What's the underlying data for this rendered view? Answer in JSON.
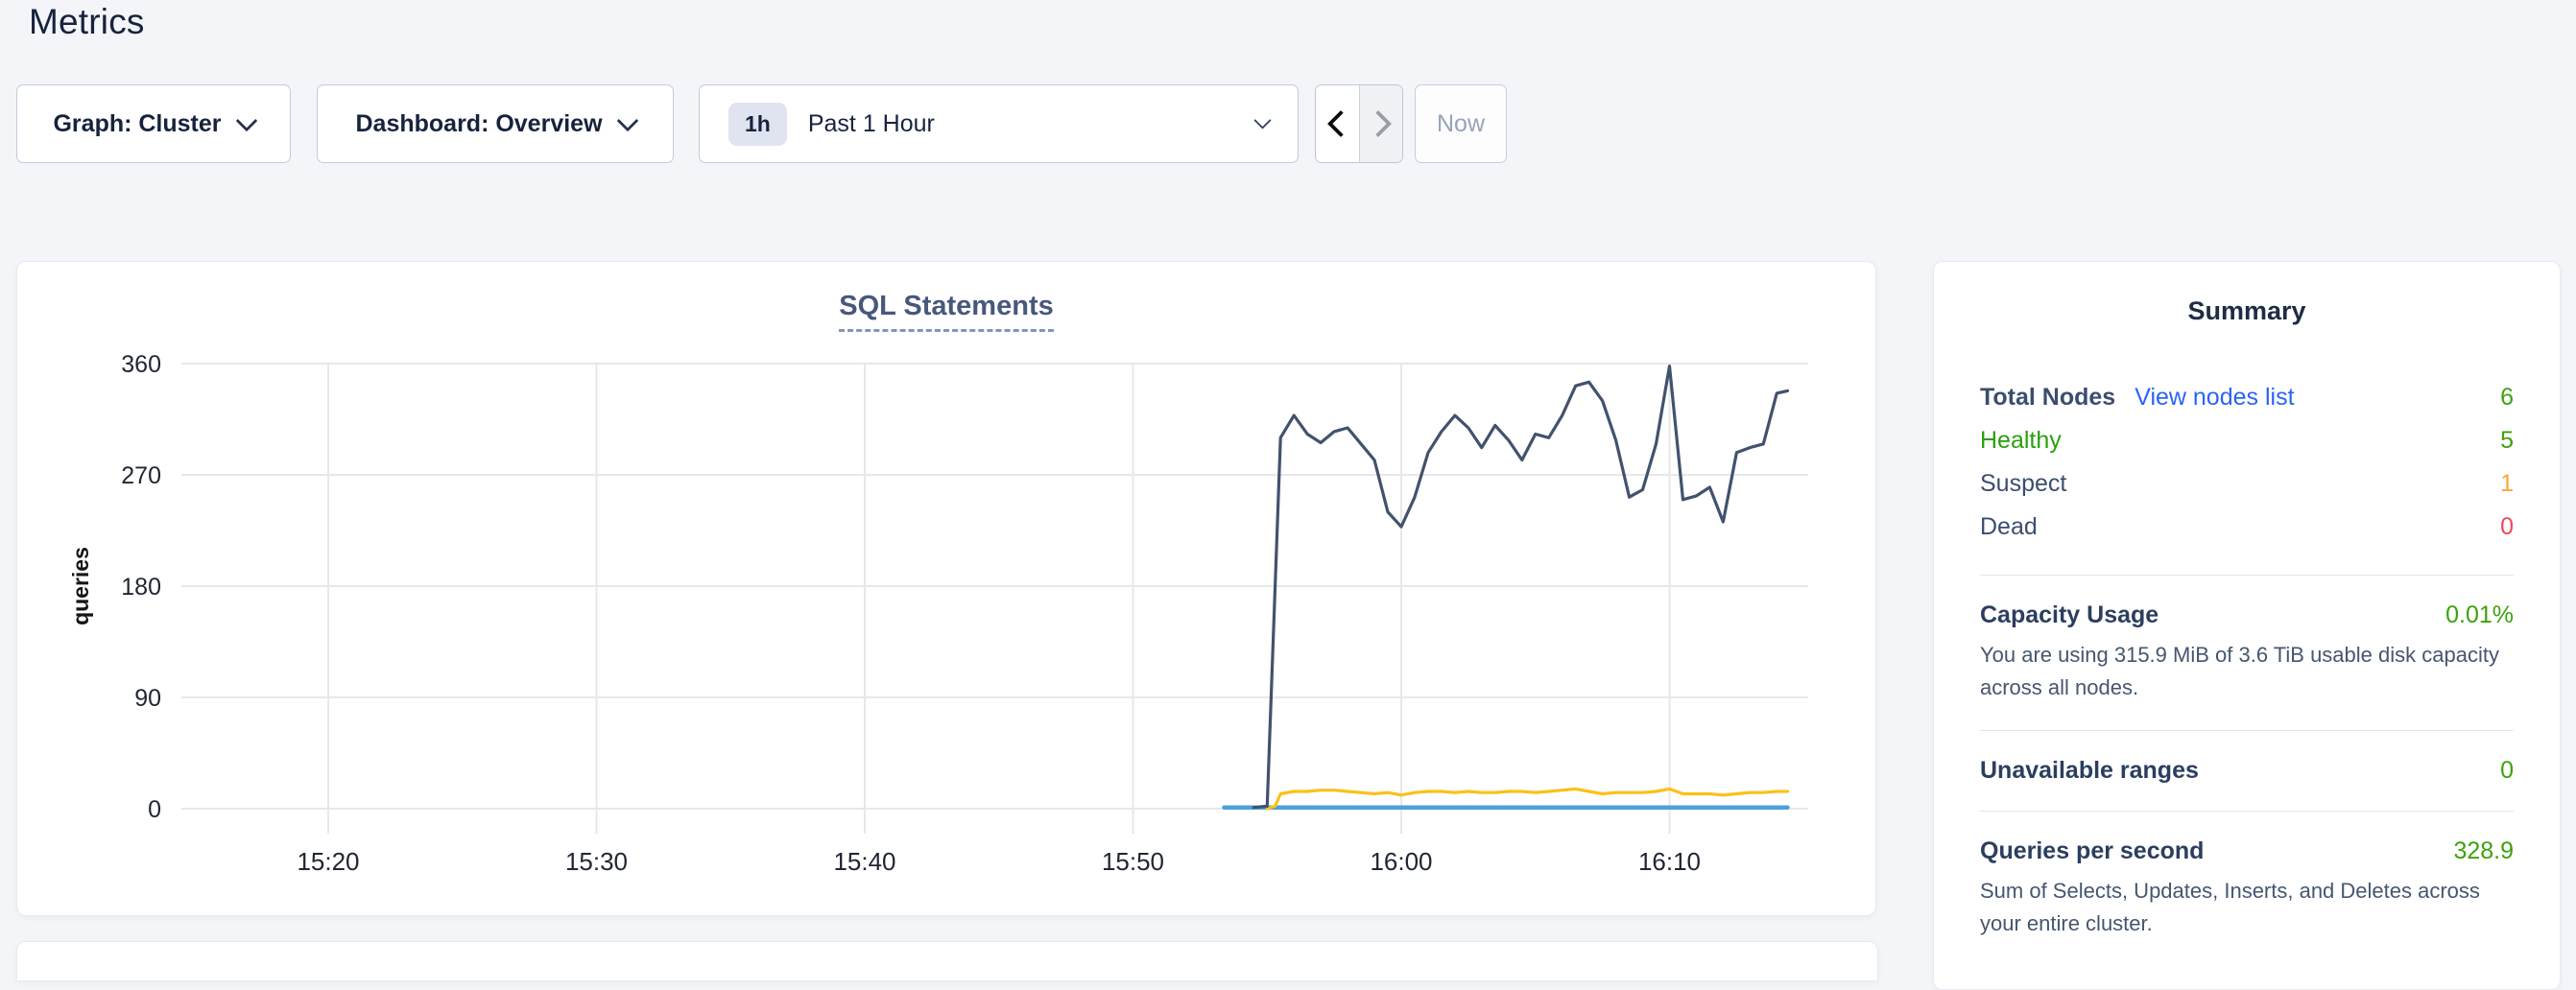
{
  "page": {
    "title": "Metrics"
  },
  "controls": {
    "graph_selector": {
      "label": "Graph: Cluster"
    },
    "dashboard_selector": {
      "label": "Dashboard: Overview"
    },
    "time_selector": {
      "badge": "1h",
      "label": "Past 1 Hour"
    },
    "back_button": {
      "enabled": true
    },
    "forward_button": {
      "enabled": false
    },
    "now_button": {
      "label": "Now",
      "enabled": false
    }
  },
  "chart_data": {
    "type": "line",
    "title": "SQL Statements",
    "ylabel": "queries",
    "xlabel": "",
    "yticks": [
      0,
      90,
      180,
      270,
      360
    ],
    "ylim": [
      0,
      360
    ],
    "grid": true,
    "legend_position": "none",
    "x_axis": {
      "unit": "minutes-after-15:20",
      "ticks": [
        0,
        10,
        20,
        30,
        40,
        50
      ],
      "tick_labels": [
        "15:20",
        "15:30",
        "15:40",
        "15:50",
        "16:00",
        "16:10"
      ],
      "range": [
        -5.5,
        55.2
      ]
    },
    "series": [
      {
        "name": "dark-blue-line",
        "color": "#42526e",
        "points": [
          [
            34.5,
            1
          ],
          [
            35,
            2
          ],
          [
            35.5,
            300
          ],
          [
            36,
            318
          ],
          [
            36.5,
            303
          ],
          [
            37,
            296
          ],
          [
            37.5,
            305
          ],
          [
            38,
            308
          ],
          [
            38.5,
            295
          ],
          [
            39,
            282
          ],
          [
            39.5,
            240
          ],
          [
            40,
            228
          ],
          [
            40.5,
            252
          ],
          [
            41,
            288
          ],
          [
            41.5,
            305
          ],
          [
            42,
            318
          ],
          [
            42.5,
            308
          ],
          [
            43,
            292
          ],
          [
            43.5,
            310
          ],
          [
            44,
            298
          ],
          [
            44.5,
            282
          ],
          [
            45,
            303
          ],
          [
            45.5,
            300
          ],
          [
            46,
            318
          ],
          [
            46.5,
            342
          ],
          [
            47,
            345
          ],
          [
            47.5,
            330
          ],
          [
            48,
            298
          ],
          [
            48.5,
            252
          ],
          [
            49,
            258
          ],
          [
            49.5,
            295
          ],
          [
            50,
            358
          ],
          [
            50.5,
            250
          ],
          [
            51,
            253
          ],
          [
            51.5,
            260
          ],
          [
            52,
            232
          ],
          [
            52.5,
            288
          ],
          [
            53,
            292
          ],
          [
            53.5,
            295
          ],
          [
            54,
            336
          ],
          [
            54.4,
            338
          ]
        ]
      },
      {
        "name": "yellow-line",
        "color": "#fdc018",
        "points": [
          [
            35,
            0
          ],
          [
            35.3,
            2
          ],
          [
            35.5,
            12
          ],
          [
            36,
            14
          ],
          [
            36.5,
            14
          ],
          [
            37,
            15
          ],
          [
            37.5,
            15
          ],
          [
            38,
            14
          ],
          [
            38.5,
            13
          ],
          [
            39,
            12
          ],
          [
            39.5,
            13
          ],
          [
            40,
            11
          ],
          [
            40.5,
            13
          ],
          [
            41,
            14
          ],
          [
            41.5,
            14
          ],
          [
            42,
            13
          ],
          [
            42.5,
            14
          ],
          [
            43,
            13
          ],
          [
            43.5,
            13
          ],
          [
            44,
            14
          ],
          [
            44.5,
            14
          ],
          [
            45,
            13
          ],
          [
            45.5,
            14
          ],
          [
            46,
            15
          ],
          [
            46.5,
            16
          ],
          [
            47,
            14
          ],
          [
            47.5,
            12
          ],
          [
            48,
            13
          ],
          [
            48.5,
            13
          ],
          [
            49,
            13
          ],
          [
            49.5,
            14
          ],
          [
            50,
            16
          ],
          [
            50.5,
            12
          ],
          [
            51,
            12
          ],
          [
            51.5,
            12
          ],
          [
            52,
            11
          ],
          [
            52.5,
            12
          ],
          [
            53,
            13
          ],
          [
            53.5,
            13
          ],
          [
            54,
            14
          ],
          [
            54.4,
            14
          ]
        ]
      },
      {
        "name": "flat-blue-line",
        "color": "#4da0dd",
        "points": [
          [
            33.4,
            1
          ],
          [
            54.4,
            1
          ]
        ]
      }
    ]
  },
  "summary": {
    "title": "Summary",
    "node_rows": [
      {
        "label": "Total Nodes",
        "link": "View nodes list",
        "value": "6",
        "color": "green"
      },
      {
        "label": "Healthy",
        "value": "5",
        "color": "green"
      },
      {
        "label": "Suspect",
        "value": "1",
        "color": "orange"
      },
      {
        "label": "Dead",
        "value": "0",
        "color": "red"
      }
    ],
    "sections": [
      {
        "title": "Capacity Usage",
        "value": "0.01%",
        "desc": "You are using 315.9 MiB of 3.6 TiB usable disk capacity across all nodes."
      },
      {
        "title": "Unavailable ranges",
        "value": "0",
        "desc": ""
      },
      {
        "title": "Queries per second",
        "value": "328.9",
        "desc": "Sum of Selects, Updates, Inserts, and Deletes across your entire cluster."
      }
    ]
  },
  "colors": {
    "page_background": "#f4f5f9",
    "heading_text": "#17233d",
    "chart_title": "#47587c",
    "gridline": "#e8e8eb",
    "axis_text": "#1f2633",
    "green_value": "#3da10d",
    "orange_value": "#f9a63c",
    "red_value": "#f0475a",
    "link_blue": "#2a63f6",
    "series_dark": "#42526e",
    "series_yellow": "#fdc018",
    "series_blue": "#4da0dd"
  }
}
